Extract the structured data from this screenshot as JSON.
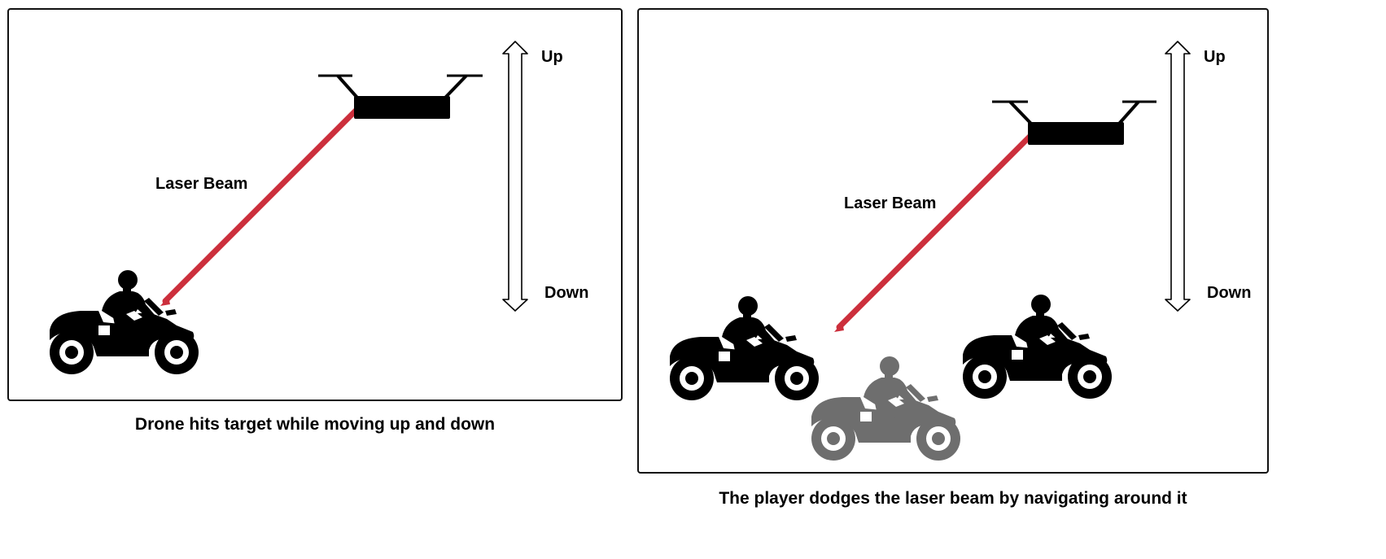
{
  "left_panel": {
    "laser_label": "Laser Beam",
    "arrow_up_label": "Up",
    "arrow_down_label": "Down",
    "caption": "Drone hits target while moving up and down"
  },
  "right_panel": {
    "laser_label": "Laser Beam",
    "arrow_up_label": "Up",
    "arrow_down_label": "Down",
    "caption": "The player dodges the laser beam by navigating around it"
  },
  "colors": {
    "laser": "#cc2f3c",
    "silhouette": "#000000",
    "ghost": "#6e6e6e",
    "border": "#111111"
  },
  "icons": [
    "drone-icon",
    "motorcycle-rider-icon",
    "double-arrow-icon"
  ]
}
